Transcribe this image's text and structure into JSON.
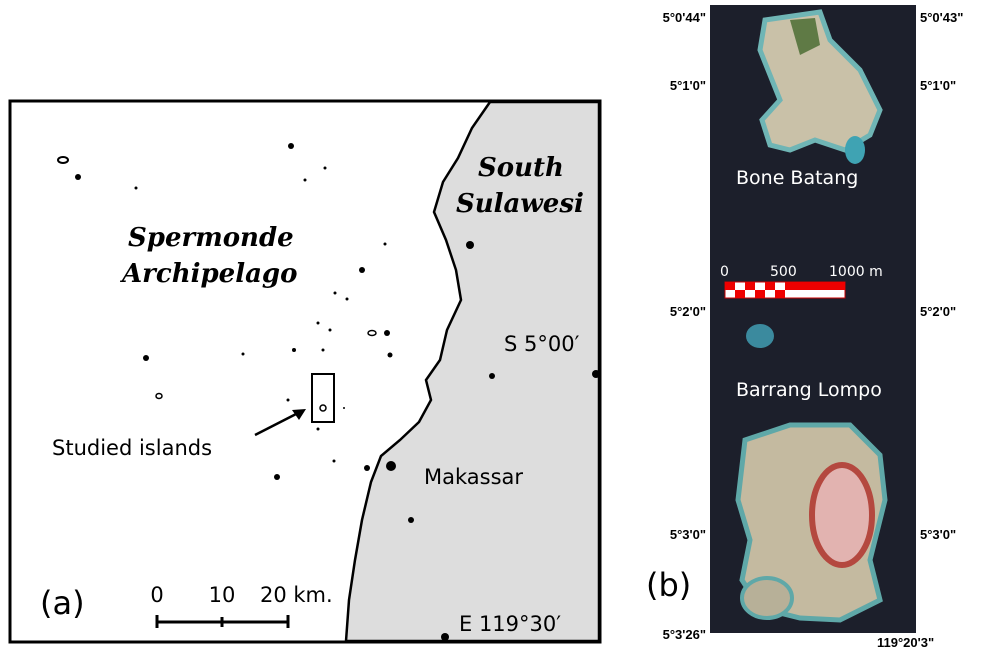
{
  "panel_a": {
    "label": "(a)",
    "region": [
      "South",
      "Sulawesi"
    ],
    "archipelago": [
      "Spermonde",
      "Archipelago"
    ],
    "latitude": "S 5°00′",
    "longitude": "E 119°30′",
    "studied": "Studied islands",
    "city": "Makassar",
    "scale": [
      "0",
      "10",
      "20 km."
    ]
  },
  "panel_b": {
    "label": "(b)",
    "left_coords": [
      "5°0'44\"",
      "5°1'0\"",
      "5°2'0\"",
      "5°3'0\"",
      "5°3'26\""
    ],
    "right_coords": [
      "5°0'43\"",
      "5°1'0\"",
      "5°2'0\"",
      "5°3'0\"",
      "119°20'3\""
    ],
    "islands": [
      "Bone Batang",
      "Barrang Lompo"
    ],
    "scale": [
      "0",
      "500",
      "1000 m"
    ]
  }
}
